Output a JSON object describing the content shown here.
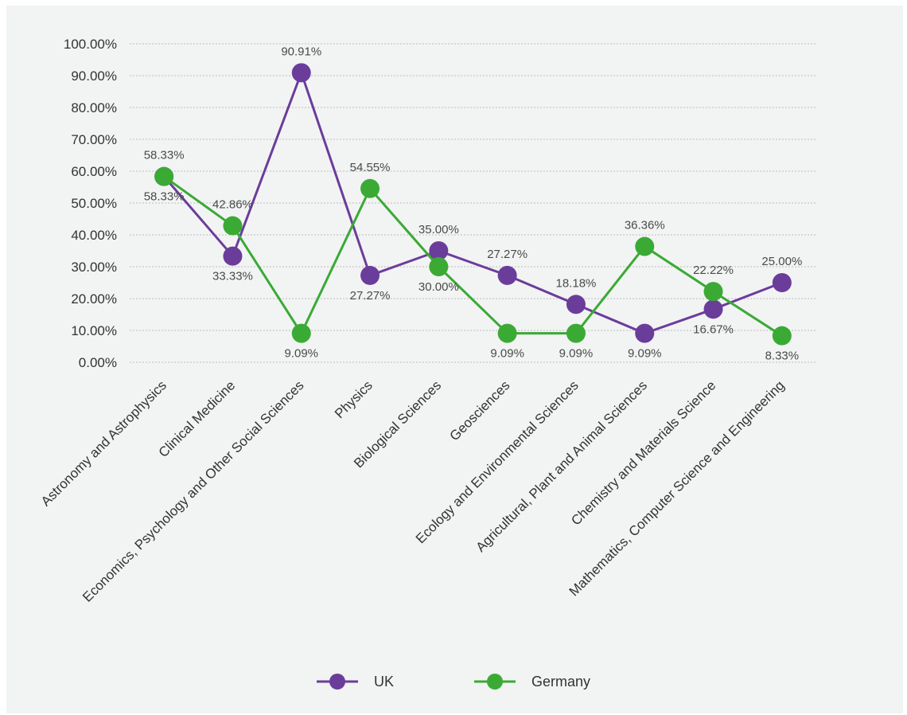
{
  "chart_data": {
    "type": "line",
    "title": "",
    "xlabel": "",
    "ylabel": "",
    "ylim": [
      0,
      100
    ],
    "yticks": [
      "0.00%",
      "10.00%",
      "20.00%",
      "30.00%",
      "40.00%",
      "50.00%",
      "60.00%",
      "70.00%",
      "80.00%",
      "90.00%",
      "100.00%"
    ],
    "grid": true,
    "legend": "bottom",
    "categories": [
      "Astronomy and Astrophysics",
      "Clinical Medicine",
      "Economics, Psychology and Other Social Sciences",
      "Physics",
      "Biological Sciences",
      "Geosciences",
      "Ecology and Environmental Sciences",
      "Agricultural, Plant and Animal Sciences",
      "Chemistry and Materials Science",
      "Mathematics, Computer Science and Engineering"
    ],
    "series": [
      {
        "name": "UK",
        "color": "#6a3d9a",
        "values": [
          58.33,
          33.33,
          90.91,
          27.27,
          35.0,
          27.27,
          18.18,
          9.09,
          16.67,
          25.0
        ],
        "labels": [
          "58.33%",
          "33.33%",
          "90.91%",
          "27.27%",
          "35.00%",
          "27.27%",
          "18.18%",
          "9.09%",
          "16.67%",
          "25.00%"
        ]
      },
      {
        "name": "Germany",
        "color": "#3aaa35",
        "values": [
          58.33,
          42.86,
          9.09,
          54.55,
          30.0,
          9.09,
          9.09,
          36.36,
          22.22,
          8.33
        ],
        "labels": [
          "58.33%",
          "42.86%",
          "9.09%",
          "54.55%",
          "30.00%",
          "9.09%",
          "9.09%",
          "36.36%",
          "22.22%",
          "8.33%"
        ]
      }
    ]
  }
}
